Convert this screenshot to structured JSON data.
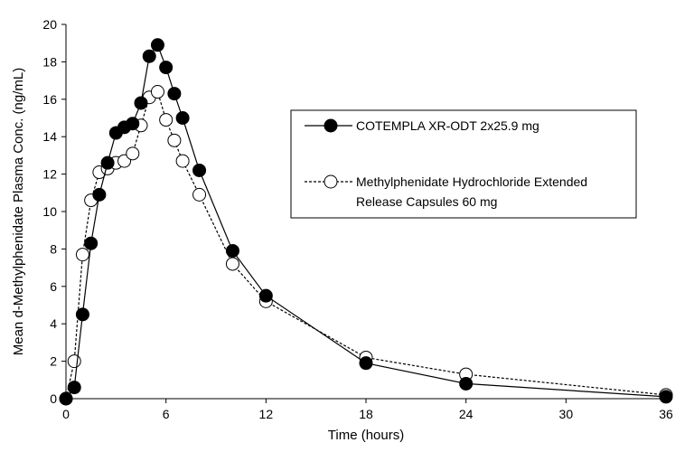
{
  "chart_data": {
    "type": "line",
    "title": "",
    "xlabel": "Time (hours)",
    "ylabel": "Mean d-Methylphenidate Plasma Conc. (ng/mL)",
    "xlim": [
      0,
      36
    ],
    "ylim": [
      0,
      20
    ],
    "xticks": [
      0,
      6,
      12,
      18,
      24,
      30,
      36
    ],
    "yticks": [
      0,
      2,
      4,
      6,
      8,
      10,
      12,
      14,
      16,
      18,
      20
    ],
    "grid": false,
    "legend_position": "center-right",
    "series": [
      {
        "name": "COTEMPLA XR-ODT 2x25.9 mg",
        "marker": "filled-circle",
        "line_style": "solid",
        "color": "#000000",
        "x": [
          0,
          0.5,
          1,
          1.5,
          2,
          2.5,
          3,
          3.5,
          4,
          4.5,
          5,
          5.5,
          6,
          6.5,
          7,
          8,
          10,
          12,
          18,
          24,
          36
        ],
        "y": [
          0,
          0.6,
          4.5,
          8.3,
          10.9,
          12.6,
          14.2,
          14.5,
          14.7,
          15.8,
          18.3,
          18.9,
          17.7,
          16.3,
          15.0,
          12.2,
          7.9,
          5.5,
          1.9,
          0.8,
          0.1
        ]
      },
      {
        "name": "Methylphenidate Hydrochloride Extended Release Capsules 60 mg",
        "marker": "open-circle",
        "line_style": "dashed",
        "color": "#000000",
        "x": [
          0,
          0.5,
          1,
          1.5,
          2,
          2.5,
          3,
          3.5,
          4,
          4.5,
          5,
          5.5,
          6,
          6.5,
          7,
          8,
          10,
          12,
          18,
          24,
          36
        ],
        "y": [
          0,
          2.0,
          7.7,
          10.6,
          12.1,
          12.3,
          12.6,
          12.7,
          13.1,
          14.6,
          16.1,
          16.4,
          14.9,
          13.8,
          12.7,
          10.9,
          7.2,
          5.2,
          2.2,
          1.3,
          0.2
        ]
      }
    ],
    "legend": {
      "entries": [
        {
          "lines": [
            "COTEMPLA XR-ODT 2x25.9 mg"
          ]
        },
        {
          "lines": [
            "Methylphenidate Hydrochloride Extended",
            "Release Capsules 60 mg"
          ]
        }
      ]
    }
  }
}
